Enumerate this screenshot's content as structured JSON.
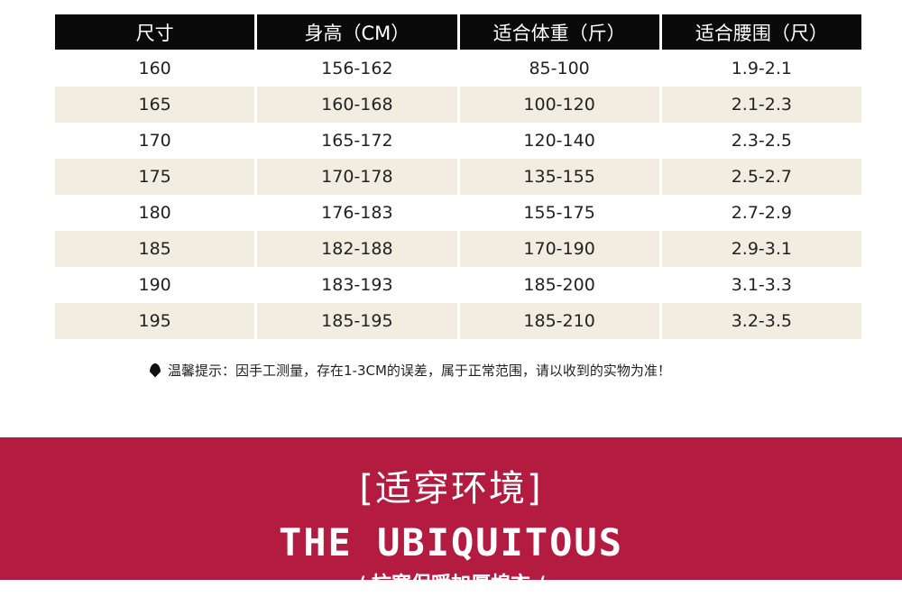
{
  "table": {
    "headers": [
      "尺寸",
      "身高（CM）",
      "适合体重（斤）",
      "适合腰围（尺）"
    ],
    "rows": [
      [
        "160",
        "156-162",
        "85-100",
        "1.9-2.1"
      ],
      [
        "165",
        "160-168",
        "100-120",
        "2.1-2.3"
      ],
      [
        "170",
        "165-172",
        "120-140",
        "2.3-2.5"
      ],
      [
        "175",
        "170-178",
        "135-155",
        "2.5-2.7"
      ],
      [
        "180",
        "176-183",
        "155-175",
        "2.7-2.9"
      ],
      [
        "185",
        "182-188",
        "170-190",
        "2.9-3.1"
      ],
      [
        "190",
        "183-193",
        "185-200",
        "3.1-3.3"
      ],
      [
        "195",
        "185-195",
        "185-210",
        "3.2-3.5"
      ]
    ]
  },
  "note": "温馨提示：因手工测量，存在1-3CM的误差，属于正常范围，请以收到的实物为准！",
  "banner": {
    "title": "[适穿环境]",
    "subtitle": "THE UBIQUITOUS",
    "tagline": "/ 抗寒保暖加厚棉衣 /",
    "color": "#b31c40"
  }
}
